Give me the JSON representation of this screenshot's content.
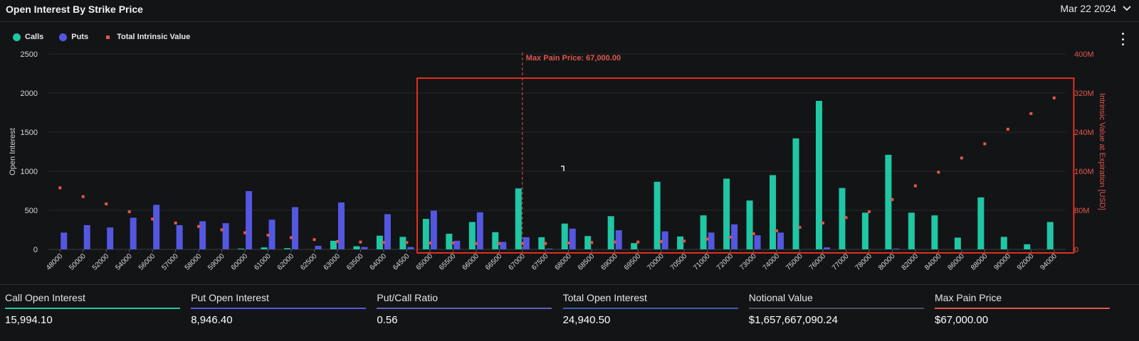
{
  "header": {
    "title": "Open Interest By Strike Price",
    "date_value": "Mar 22 2024"
  },
  "legend": [
    {
      "label": "Calls",
      "color": "#1fc7a4",
      "shape": "circle"
    },
    {
      "label": "Puts",
      "color": "#5457e0",
      "shape": "circle"
    },
    {
      "label": "Total Intrinsic Value",
      "color": "#e0574b",
      "shape": "square"
    }
  ],
  "icons": {
    "menu": "vertical-ellipsis-icon",
    "dropdown": "chevron-down-icon"
  },
  "colors": {
    "calls": "#1fc7a4",
    "puts": "#5457e0",
    "intrinsic": "#e0574b",
    "highlight": "#e0301e"
  },
  "chart_data": {
    "type": "bar",
    "categories": [
      "48000",
      "50000",
      "52000",
      "54000",
      "56000",
      "57000",
      "58000",
      "59000",
      "60000",
      "61000",
      "62000",
      "62500",
      "63000",
      "63500",
      "64000",
      "64500",
      "65000",
      "65500",
      "66000",
      "66500",
      "67000",
      "67500",
      "68000",
      "68500",
      "69000",
      "69500",
      "70000",
      "70500",
      "71000",
      "72000",
      "73000",
      "74000",
      "75000",
      "76000",
      "77000",
      "78000",
      "80000",
      "82000",
      "84000",
      "86000",
      "88000",
      "90000",
      "92000",
      "94000"
    ],
    "series": [
      {
        "name": "Calls",
        "axis": "left",
        "values": [
          0,
          0,
          0,
          0,
          0,
          0,
          0,
          0,
          10,
          25,
          15,
          0,
          110,
          40,
          175,
          160,
          390,
          200,
          350,
          220,
          780,
          155,
          330,
          170,
          425,
          80,
          865,
          165,
          435,
          905,
          625,
          950,
          1420,
          1900,
          785,
          470,
          1210,
          470,
          435,
          150,
          665,
          160,
          65,
          350
        ]
      },
      {
        "name": "Puts",
        "axis": "left",
        "values": [
          215,
          310,
          280,
          405,
          570,
          310,
          360,
          335,
          745,
          380,
          540,
          45,
          600,
          30,
          450,
          30,
          495,
          110,
          475,
          95,
          155,
          10,
          265,
          0,
          245,
          0,
          230,
          0,
          215,
          320,
          180,
          215,
          0,
          25,
          0,
          0,
          10,
          0,
          0,
          0,
          0,
          0,
          0,
          0
        ]
      },
      {
        "name": "Total Intrinsic Value",
        "axis": "right",
        "type": "scatter",
        "values": [
          126000000,
          108000000,
          93000000,
          77000000,
          62000000,
          54000000,
          47000000,
          40000000,
          34000000,
          29000000,
          24000000,
          20000000,
          16000000,
          15000000,
          14000000,
          14000000,
          13000000,
          13000000,
          12000000,
          12000000,
          12000000,
          12000000,
          13000000,
          14000000,
          15000000,
          15000000,
          16000000,
          17000000,
          21000000,
          25000000,
          32000000,
          38000000,
          45000000,
          54000000,
          65000000,
          77000000,
          102000000,
          130000000,
          158000000,
          187000000,
          216000000,
          246000000,
          278000000,
          310000000
        ]
      }
    ],
    "ylabel": "Open Interest",
    "ylim": [
      0,
      2500
    ],
    "yticks": [
      "0",
      "500",
      "1000",
      "1500",
      "2000",
      "2500"
    ],
    "y2label": "Intrinsic Value at Expiration [USD]",
    "y2lim": [
      0,
      400000000
    ],
    "y2ticks": [
      "0",
      "80M",
      "160M",
      "240M",
      "320M",
      "400M"
    ],
    "annotation": {
      "label": "Max Pain Price: 67,000.00",
      "category": "67000"
    },
    "highlight_range": [
      "65000",
      "94000"
    ],
    "grid": true
  },
  "stats": [
    {
      "label": "Call Open Interest",
      "value": "15,994.10",
      "color": "#1fc7a4"
    },
    {
      "label": "Put Open Interest",
      "value": "8,946.40",
      "color": "#5457e0"
    },
    {
      "label": "Put/Call Ratio",
      "value": "0.56",
      "color": "#5f62b8"
    },
    {
      "label": "Total Open Interest",
      "value": "24,940.50",
      "color": "#3b5fb0"
    },
    {
      "label": "Notional Value",
      "value": "$1,657,667,090.24",
      "color": "#4a5060"
    },
    {
      "label": "Max Pain Price",
      "value": "$67,000.00",
      "color": "#e0574b"
    }
  ]
}
